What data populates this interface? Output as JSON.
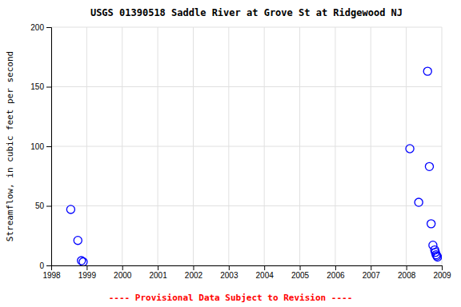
{
  "chart_data": {
    "type": "scatter",
    "title": "USGS 01390518 Saddle River at Grove St at Ridgewood NJ",
    "ylabel": "Streamflow, in cubic feet per second",
    "annotations": [
      {
        "text": "---- Provisional Data Subject to Revision ----",
        "color": "red"
      }
    ],
    "x": [
      1998.55,
      1998.75,
      1998.85,
      1998.9,
      2008.1,
      2008.35,
      2008.6,
      2008.65,
      2008.7,
      2008.75,
      2008.8,
      2008.82,
      2008.84,
      2008.86,
      2008.88
    ],
    "values": [
      47,
      21,
      4,
      3,
      98,
      53,
      163,
      83,
      35,
      17,
      13,
      11,
      9,
      8,
      7
    ],
    "color": "blue",
    "marker": "circle",
    "xlim": [
      1998,
      2009
    ],
    "ylim": [
      0,
      200
    ],
    "xticks": [
      1998,
      1999,
      2000,
      2001,
      2002,
      2003,
      2004,
      2005,
      2006,
      2007,
      2008,
      2009
    ],
    "yticks": [
      0,
      50,
      100,
      150,
      200
    ],
    "grid": true
  }
}
